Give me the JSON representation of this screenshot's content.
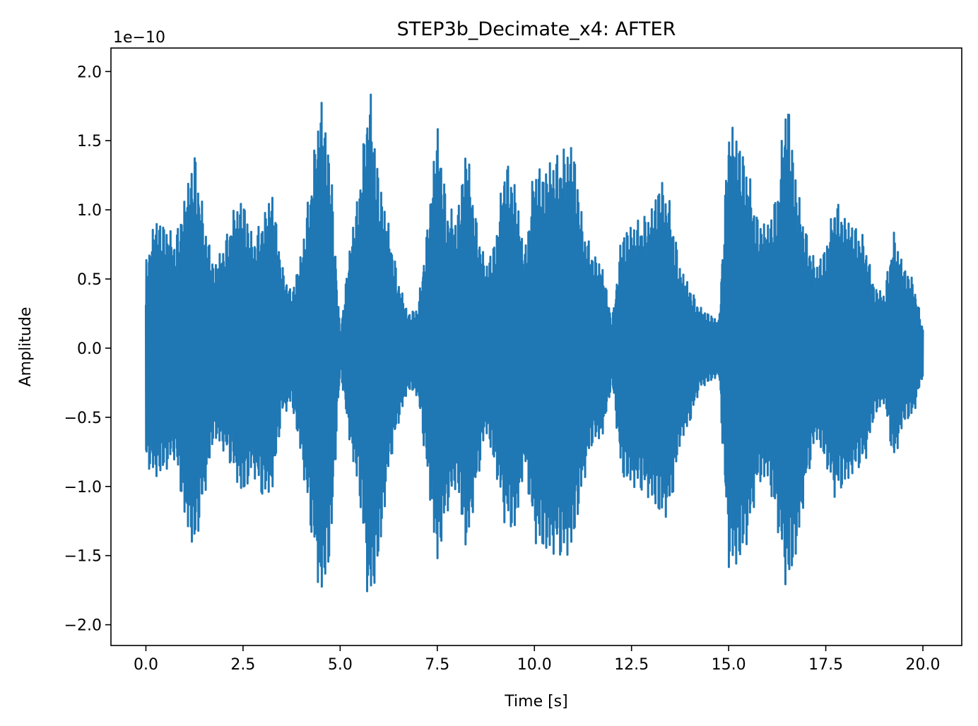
{
  "chart_data": {
    "type": "line",
    "title": "STEP3b_Decimate_x4: AFTER",
    "xlabel": "Time [s]",
    "ylabel": "Amplitude",
    "y_offset_label": "1e−10",
    "xlim": [
      -0.9,
      21.0
    ],
    "ylim": [
      -2.15,
      2.17
    ],
    "x_ticks": [
      0.0,
      2.5,
      5.0,
      7.5,
      10.0,
      12.5,
      15.0,
      17.5,
      20.0
    ],
    "x_tick_labels": [
      "0.0",
      "2.5",
      "5.0",
      "7.5",
      "10.0",
      "12.5",
      "15.0",
      "17.5",
      "20.0"
    ],
    "y_ticks": [
      -2.0,
      -1.5,
      -1.0,
      -0.5,
      0.0,
      0.5,
      1.0,
      1.5,
      2.0
    ],
    "y_tick_labels": [
      "−2.0",
      "−1.5",
      "−1.0",
      "−0.5",
      "0.0",
      "0.5",
      "1.0",
      "1.5",
      "2.0"
    ],
    "grid": false,
    "legend": "none",
    "line_color": "#1f77b4",
    "series": [
      {
        "x": [
          0.0,
          0.25,
          0.5,
          0.75,
          1.0,
          1.25,
          1.5,
          1.75,
          2.0,
          2.25,
          2.5,
          2.75,
          3.0,
          3.25,
          3.5,
          3.75,
          4.0,
          4.25,
          4.5,
          4.75,
          5.0,
          5.25,
          5.5,
          5.75,
          6.0,
          6.25,
          6.5,
          6.75,
          7.0,
          7.25,
          7.5,
          7.75,
          8.0,
          8.25,
          8.5,
          8.75,
          9.0,
          9.25,
          9.5,
          9.75,
          10.0,
          10.25,
          10.5,
          10.75,
          11.0,
          11.25,
          11.5,
          11.75,
          12.0,
          12.25,
          12.5,
          12.75,
          13.0,
          13.25,
          13.5,
          13.75,
          14.0,
          14.25,
          14.5,
          14.75,
          15.0,
          15.25,
          15.5,
          15.75,
          16.0,
          16.25,
          16.5,
          16.75,
          17.0,
          17.25,
          17.5,
          17.75,
          18.0,
          18.25,
          18.5,
          18.75,
          19.0,
          19.25,
          19.5,
          19.75,
          20.0
        ],
        "upper": [
          0.65,
          0.95,
          0.9,
          0.8,
          1.1,
          1.45,
          0.95,
          0.6,
          0.75,
          1.0,
          1.1,
          0.8,
          0.95,
          1.15,
          0.6,
          0.4,
          0.7,
          1.25,
          1.85,
          1.4,
          0.1,
          0.75,
          1.2,
          1.95,
          1.25,
          0.9,
          0.5,
          0.25,
          0.3,
          0.9,
          1.65,
          1.05,
          0.95,
          1.5,
          0.95,
          0.6,
          0.8,
          1.4,
          1.2,
          0.7,
          1.35,
          1.3,
          1.4,
          1.45,
          1.5,
          0.9,
          0.7,
          0.6,
          0.2,
          0.85,
          0.9,
          0.95,
          1.0,
          1.25,
          1.05,
          0.6,
          0.45,
          0.3,
          0.25,
          0.2,
          1.65,
          1.55,
          1.3,
          0.95,
          0.9,
          1.15,
          1.9,
          1.2,
          0.85,
          0.6,
          0.75,
          1.1,
          0.95,
          0.9,
          0.8,
          0.45,
          0.4,
          0.85,
          0.6,
          0.5,
          0.15
        ],
        "lower": [
          -0.85,
          -0.95,
          -0.9,
          -0.8,
          -1.25,
          -1.5,
          -1.1,
          -0.65,
          -0.75,
          -0.9,
          -1.1,
          -0.9,
          -1.1,
          -1.05,
          -0.5,
          -0.4,
          -0.8,
          -1.35,
          -1.85,
          -1.55,
          -0.15,
          -0.7,
          -1.1,
          -1.95,
          -1.55,
          -0.9,
          -0.55,
          -0.3,
          -0.35,
          -0.95,
          -1.6,
          -1.2,
          -1.0,
          -1.5,
          -1.05,
          -0.6,
          -0.9,
          -1.3,
          -1.35,
          -0.85,
          -1.4,
          -1.5,
          -1.5,
          -1.55,
          -1.45,
          -1.0,
          -0.7,
          -0.65,
          -0.25,
          -0.95,
          -1.0,
          -1.05,
          -1.1,
          -1.25,
          -1.2,
          -0.7,
          -0.55,
          -0.3,
          -0.25,
          -0.2,
          -1.6,
          -1.6,
          -1.4,
          -1.0,
          -0.95,
          -1.3,
          -1.8,
          -1.5,
          -1.0,
          -0.65,
          -0.85,
          -1.1,
          -1.0,
          -0.9,
          -0.85,
          -0.5,
          -0.4,
          -0.85,
          -0.55,
          -0.5,
          -0.2
        ]
      }
    ]
  }
}
